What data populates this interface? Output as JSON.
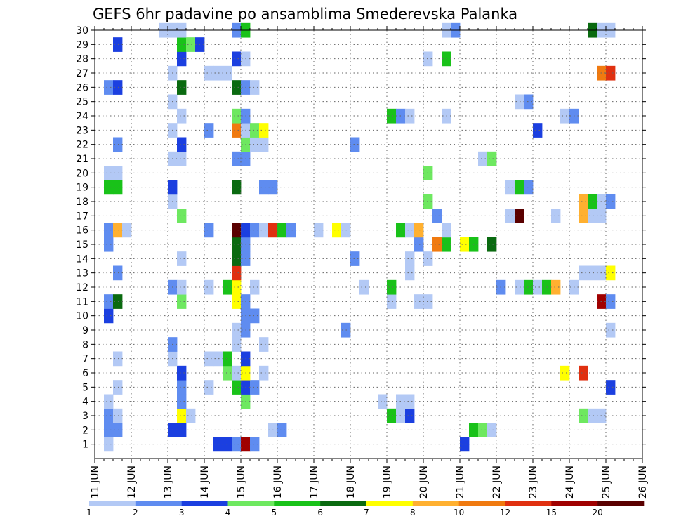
{
  "chart_data": {
    "type": "heatmap",
    "title": "GEFS 6hr padavine po ansamblima Smederevska Palanka",
    "xlabel": "",
    "ylabel": "",
    "x_ticks": [
      "11 JUN",
      "12 JUN",
      "13 JUN",
      "14 JUN",
      "15 JUN",
      "16 JUN",
      "17 JUN",
      "18 JUN",
      "19 JUN",
      "20 JUN",
      "21 JUN",
      "22 JUN",
      "23 JUN",
      "24 JUN",
      "25 JUN",
      "26 JUN"
    ],
    "xlim": [
      "11 JUN",
      "26 JUN"
    ],
    "time_step": "6hr",
    "y_ticks": [
      1,
      2,
      3,
      4,
      5,
      6,
      7,
      8,
      9,
      10,
      11,
      12,
      13,
      14,
      15,
      16,
      17,
      18,
      19,
      20,
      21,
      22,
      23,
      24,
      25,
      26,
      27,
      28,
      29,
      30
    ],
    "ylim": [
      0,
      30
    ],
    "grid": true,
    "colorbar": {
      "position": "bottom",
      "labels": [
        "1",
        "2",
        "3",
        "4",
        "5",
        "6",
        "7",
        "8",
        "10",
        "12",
        "15",
        "20"
      ],
      "colors": [
        "#b3c9f5",
        "#5f8cf0",
        "#1b3fe0",
        "#6ee860",
        "#19c219",
        "#0a6a10",
        "#ffff00",
        "#ffb030",
        "#f07a10",
        "#e03010",
        "#a00000",
        "#5a0000"
      ]
    },
    "cells": [
      [
        1,
        1,
        1
      ],
      [
        1,
        13,
        3
      ],
      [
        1,
        14,
        3
      ],
      [
        1,
        15,
        2
      ],
      [
        1,
        16,
        11
      ],
      [
        1,
        17,
        2
      ],
      [
        1,
        40,
        3
      ],
      [
        2,
        1,
        2
      ],
      [
        2,
        2,
        2
      ],
      [
        2,
        8,
        3
      ],
      [
        2,
        9,
        3
      ],
      [
        2,
        19,
        1
      ],
      [
        2,
        20,
        2
      ],
      [
        2,
        41,
        5
      ],
      [
        2,
        42,
        4
      ],
      [
        2,
        43,
        1
      ],
      [
        3,
        1,
        2
      ],
      [
        3,
        2,
        1
      ],
      [
        3,
        9,
        7
      ],
      [
        3,
        10,
        1
      ],
      [
        3,
        32,
        5
      ],
      [
        3,
        33,
        1
      ],
      [
        3,
        34,
        3
      ],
      [
        3,
        53,
        4
      ],
      [
        3,
        54,
        1
      ],
      [
        3,
        55,
        1
      ],
      [
        4,
        1,
        1
      ],
      [
        4,
        9,
        2
      ],
      [
        4,
        16,
        4
      ],
      [
        4,
        31,
        1
      ],
      [
        4,
        33,
        1
      ],
      [
        4,
        34,
        1
      ],
      [
        5,
        2,
        1
      ],
      [
        5,
        9,
        2
      ],
      [
        5,
        12,
        1
      ],
      [
        5,
        15,
        5
      ],
      [
        5,
        16,
        3
      ],
      [
        5,
        17,
        2
      ],
      [
        5,
        56,
        3
      ],
      [
        6,
        9,
        3
      ],
      [
        6,
        14,
        4
      ],
      [
        6,
        15,
        1
      ],
      [
        6,
        16,
        7
      ],
      [
        6,
        18,
        1
      ],
      [
        6,
        51,
        7
      ],
      [
        6,
        53,
        10
      ],
      [
        7,
        2,
        1
      ],
      [
        7,
        8,
        1
      ],
      [
        7,
        12,
        1
      ],
      [
        7,
        13,
        1
      ],
      [
        7,
        14,
        5
      ],
      [
        7,
        16,
        3
      ],
      [
        8,
        8,
        2
      ],
      [
        8,
        15,
        1
      ],
      [
        8,
        18,
        1
      ],
      [
        9,
        15,
        1
      ],
      [
        9,
        16,
        2
      ],
      [
        9,
        27,
        2
      ],
      [
        9,
        56,
        1
      ],
      [
        10,
        1,
        3
      ],
      [
        10,
        16,
        2
      ],
      [
        10,
        17,
        2
      ],
      [
        11,
        1,
        2
      ],
      [
        11,
        2,
        6
      ],
      [
        11,
        9,
        4
      ],
      [
        11,
        15,
        7
      ],
      [
        11,
        16,
        2
      ],
      [
        11,
        32,
        1
      ],
      [
        11,
        35,
        1
      ],
      [
        11,
        36,
        1
      ],
      [
        11,
        55,
        11
      ],
      [
        11,
        56,
        2
      ],
      [
        12,
        8,
        2
      ],
      [
        12,
        9,
        1
      ],
      [
        12,
        12,
        1
      ],
      [
        12,
        14,
        5
      ],
      [
        12,
        15,
        7
      ],
      [
        12,
        17,
        1
      ],
      [
        12,
        29,
        1
      ],
      [
        12,
        32,
        5
      ],
      [
        12,
        44,
        2
      ],
      [
        12,
        46,
        1
      ],
      [
        12,
        47,
        5
      ],
      [
        12,
        48,
        1
      ],
      [
        12,
        49,
        5
      ],
      [
        12,
        50,
        8
      ],
      [
        12,
        52,
        1
      ],
      [
        13,
        2,
        2
      ],
      [
        13,
        15,
        10
      ],
      [
        13,
        34,
        1
      ],
      [
        13,
        53,
        1
      ],
      [
        13,
        54,
        1
      ],
      [
        13,
        55,
        1
      ],
      [
        13,
        56,
        7
      ],
      [
        14,
        9,
        1
      ],
      [
        14,
        15,
        6
      ],
      [
        14,
        16,
        2
      ],
      [
        14,
        28,
        2
      ],
      [
        14,
        34,
        1
      ],
      [
        14,
        36,
        1
      ],
      [
        15,
        1,
        2
      ],
      [
        15,
        15,
        6
      ],
      [
        15,
        16,
        2
      ],
      [
        15,
        35,
        2
      ],
      [
        15,
        37,
        9
      ],
      [
        15,
        38,
        5
      ],
      [
        15,
        40,
        7
      ],
      [
        15,
        41,
        5
      ],
      [
        15,
        43,
        6
      ],
      [
        16,
        1,
        2
      ],
      [
        16,
        2,
        8
      ],
      [
        16,
        3,
        1
      ],
      [
        16,
        12,
        2
      ],
      [
        16,
        15,
        12
      ],
      [
        16,
        16,
        3
      ],
      [
        16,
        17,
        2
      ],
      [
        16,
        18,
        1
      ],
      [
        16,
        19,
        10
      ],
      [
        16,
        20,
        5
      ],
      [
        16,
        21,
        2
      ],
      [
        16,
        24,
        1
      ],
      [
        16,
        26,
        7
      ],
      [
        16,
        27,
        1
      ],
      [
        16,
        33,
        5
      ],
      [
        16,
        34,
        1
      ],
      [
        16,
        35,
        8
      ],
      [
        16,
        38,
        1
      ],
      [
        17,
        9,
        4
      ],
      [
        17,
        37,
        2
      ],
      [
        17,
        45,
        1
      ],
      [
        17,
        46,
        12
      ],
      [
        17,
        50,
        1
      ],
      [
        17,
        53,
        8
      ],
      [
        17,
        54,
        1
      ],
      [
        17,
        55,
        1
      ],
      [
        18,
        8,
        1
      ],
      [
        18,
        36,
        4
      ],
      [
        18,
        53,
        8
      ],
      [
        18,
        54,
        5
      ],
      [
        18,
        55,
        1
      ],
      [
        18,
        56,
        2
      ],
      [
        19,
        1,
        5
      ],
      [
        19,
        2,
        5
      ],
      [
        19,
        8,
        3
      ],
      [
        19,
        15,
        6
      ],
      [
        19,
        18,
        2
      ],
      [
        19,
        19,
        2
      ],
      [
        19,
        45,
        1
      ],
      [
        19,
        46,
        5
      ],
      [
        19,
        47,
        2
      ],
      [
        20,
        1,
        1
      ],
      [
        20,
        2,
        1
      ],
      [
        20,
        36,
        4
      ],
      [
        21,
        8,
        1
      ],
      [
        21,
        9,
        1
      ],
      [
        21,
        15,
        2
      ],
      [
        21,
        16,
        2
      ],
      [
        21,
        42,
        1
      ],
      [
        21,
        43,
        4
      ],
      [
        22,
        2,
        2
      ],
      [
        22,
        9,
        3
      ],
      [
        22,
        16,
        4
      ],
      [
        22,
        17,
        1
      ],
      [
        22,
        18,
        1
      ],
      [
        22,
        28,
        2
      ],
      [
        23,
        8,
        1
      ],
      [
        23,
        12,
        2
      ],
      [
        23,
        15,
        9
      ],
      [
        23,
        16,
        1
      ],
      [
        23,
        17,
        4
      ],
      [
        23,
        18,
        7
      ],
      [
        23,
        48,
        3
      ],
      [
        24,
        9,
        1
      ],
      [
        24,
        15,
        4
      ],
      [
        24,
        16,
        2
      ],
      [
        24,
        32,
        5
      ],
      [
        24,
        33,
        2
      ],
      [
        24,
        34,
        1
      ],
      [
        24,
        38,
        1
      ],
      [
        24,
        51,
        1
      ],
      [
        24,
        52,
        2
      ],
      [
        25,
        8,
        1
      ],
      [
        25,
        46,
        1
      ],
      [
        25,
        47,
        2
      ],
      [
        26,
        1,
        2
      ],
      [
        26,
        2,
        3
      ],
      [
        26,
        9,
        6
      ],
      [
        26,
        15,
        6
      ],
      [
        26,
        16,
        2
      ],
      [
        26,
        17,
        1
      ],
      [
        27,
        8,
        1
      ],
      [
        27,
        12,
        1
      ],
      [
        27,
        13,
        1
      ],
      [
        27,
        14,
        1
      ],
      [
        27,
        55,
        9
      ],
      [
        27,
        56,
        10
      ],
      [
        28,
        9,
        3
      ],
      [
        28,
        15,
        3
      ],
      [
        28,
        16,
        1
      ],
      [
        28,
        36,
        1
      ],
      [
        28,
        38,
        5
      ],
      [
        29,
        2,
        3
      ],
      [
        29,
        9,
        5
      ],
      [
        29,
        10,
        4
      ],
      [
        29,
        11,
        3
      ],
      [
        30,
        7,
        1
      ],
      [
        30,
        8,
        1
      ],
      [
        30,
        9,
        1
      ],
      [
        30,
        15,
        2
      ],
      [
        30,
        16,
        5
      ],
      [
        30,
        38,
        1
      ],
      [
        30,
        39,
        2
      ],
      [
        30,
        54,
        6
      ],
      [
        30,
        55,
        1
      ],
      [
        30,
        56,
        1
      ]
    ]
  }
}
